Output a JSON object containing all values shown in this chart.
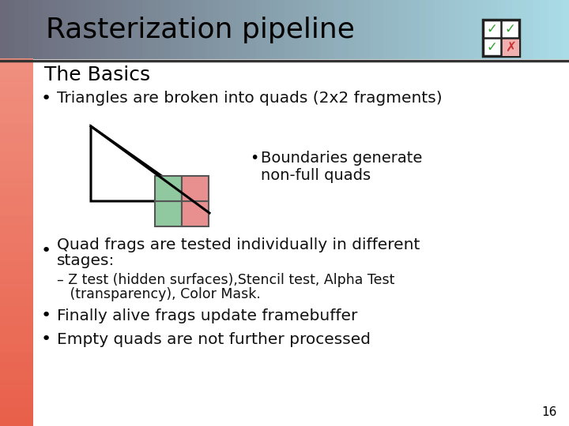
{
  "title": "Rasterization pipeline",
  "subtitle": "The Basics",
  "bg_header_left": "#6a6a7a",
  "bg_header_right": "#aadde8",
  "bg_left_top": "#e8604a",
  "bg_left_bottom": "#f09080",
  "bg_main": "#ffffff",
  "title_color": "#000000",
  "subtitle_color": "#000000",
  "body_color": "#111111",
  "bullet1": "Triangles are broken into quads (2x2 fragments)",
  "sub_bullet1_line1": "Boundaries generate",
  "sub_bullet1_line2": "non-full quads",
  "bullet2_line1": "Quad frags are tested individually in different",
  "bullet2_line2": "stages:",
  "sub_bullet2_line1": "– Z test (hidden surfaces),Stencil test, Alpha Test",
  "sub_bullet2_line2": "   (transparency), Color Mask.",
  "bullet3": "Finally alive frags update framebuffer",
  "bullet4": "Empty quads are not further processed",
  "page_number": "16",
  "green_color": "#90c8a0",
  "pink_color": "#e89090",
  "dark_green": "#207050",
  "triangle_color": "#000000"
}
